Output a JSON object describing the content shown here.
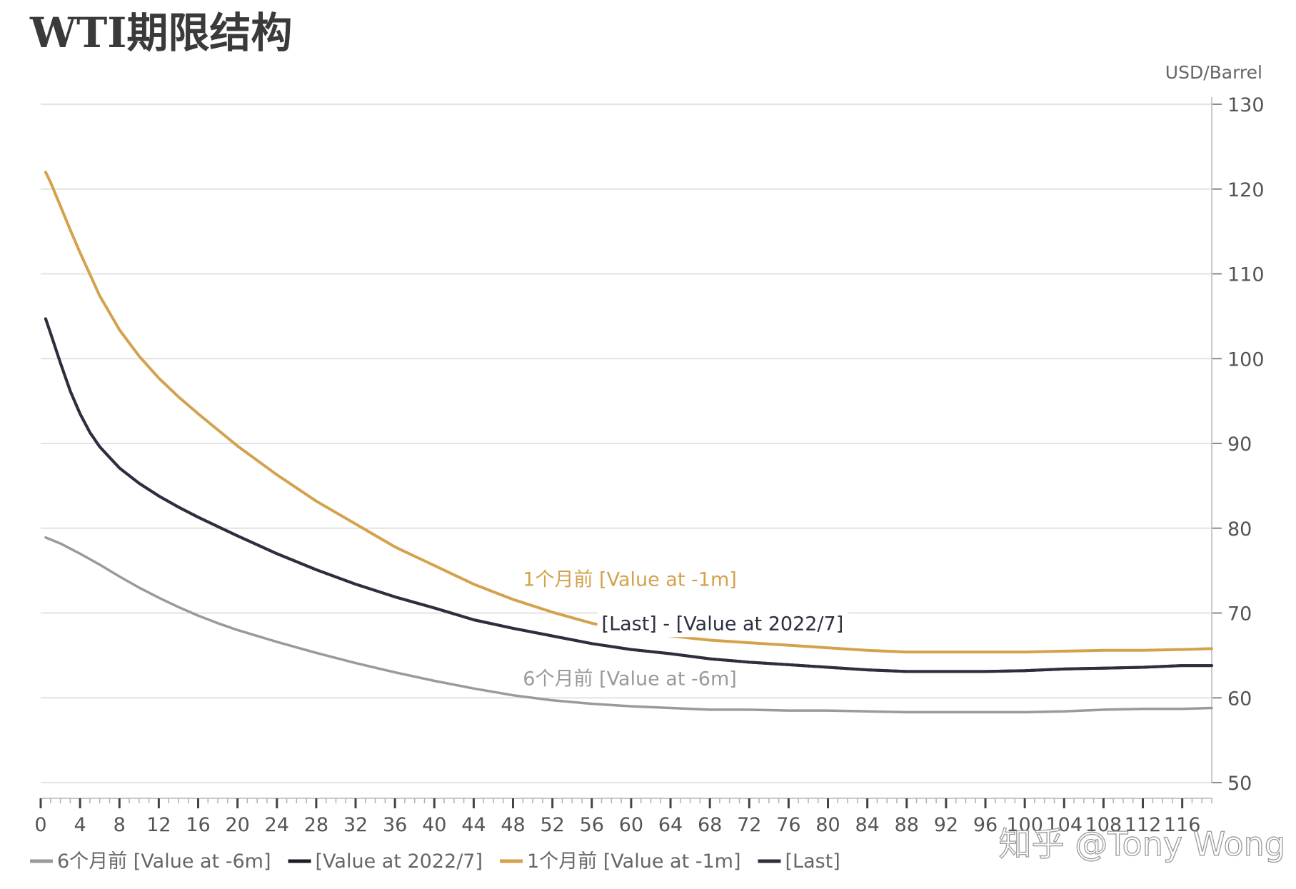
{
  "page": {
    "title": "WTI期限结构"
  },
  "watermark": "知乎 @Tony Wong",
  "chart_data": {
    "type": "line",
    "title": "WTI期限结构",
    "ylabel": "USD/Barrel",
    "xlabel": "",
    "xlim": [
      0,
      119
    ],
    "ylim": [
      50,
      130
    ],
    "grid": true,
    "y_axis_side": "right",
    "legend_position": "bottom",
    "x_ticks": [
      0,
      4,
      8,
      12,
      16,
      20,
      24,
      28,
      32,
      36,
      40,
      44,
      48,
      52,
      56,
      60,
      64,
      68,
      72,
      76,
      80,
      84,
      88,
      92,
      96,
      100,
      104,
      108,
      112,
      116
    ],
    "y_ticks": [
      50,
      60,
      70,
      80,
      90,
      100,
      110,
      120,
      130
    ],
    "series": [
      {
        "key": "m6",
        "name": "6个月前 [Value at -6m]",
        "color": "#9a9a9a",
        "x": [
          0.5,
          2,
          4,
          6,
          8,
          10,
          12,
          14,
          16,
          18,
          20,
          24,
          28,
          32,
          36,
          40,
          44,
          48,
          52,
          56,
          60,
          64,
          68,
          72,
          76,
          80,
          84,
          88,
          92,
          96,
          100,
          104,
          108,
          112,
          116,
          119
        ],
        "y": [
          78.9,
          78.2,
          77.0,
          75.7,
          74.3,
          73.0,
          71.8,
          70.7,
          69.7,
          68.8,
          68.0,
          66.6,
          65.3,
          64.1,
          63.0,
          62.0,
          61.1,
          60.3,
          59.7,
          59.3,
          59.0,
          58.8,
          58.6,
          58.6,
          58.5,
          58.5,
          58.4,
          58.3,
          58.3,
          58.3,
          58.3,
          58.4,
          58.6,
          58.7,
          58.7,
          58.8
        ]
      },
      {
        "key": "jul",
        "name": "[Value at 2022/7]",
        "color": "#1c1c24",
        "x": [
          0.5,
          1,
          2,
          3,
          4,
          5,
          6,
          8,
          10,
          12,
          14,
          16,
          18,
          20,
          24,
          28,
          32,
          36,
          40,
          44,
          48,
          52,
          56,
          60,
          64,
          68,
          72,
          76,
          80,
          84,
          88,
          92,
          96,
          100,
          104,
          108,
          112,
          116,
          119
        ],
        "y": [
          104.7,
          103.0,
          99.5,
          96.2,
          93.5,
          91.3,
          89.6,
          87.1,
          85.3,
          83.8,
          82.5,
          81.3,
          80.2,
          79.1,
          77.0,
          75.1,
          73.4,
          71.9,
          70.6,
          69.2,
          68.2,
          67.3,
          66.4,
          65.7,
          65.2,
          64.6,
          64.2,
          63.9,
          63.6,
          63.3,
          63.1,
          63.1,
          63.1,
          63.2,
          63.4,
          63.5,
          63.6,
          63.8,
          63.8
        ]
      },
      {
        "key": "m1",
        "name": "1个月前 [Value at -1m]",
        "color": "#d4a24c",
        "x": [
          0.5,
          1,
          2,
          3,
          4,
          6,
          8,
          10,
          12,
          14,
          16,
          18,
          20,
          24,
          28,
          32,
          36,
          40,
          44,
          48,
          52,
          56,
          60,
          64,
          68,
          72,
          76,
          80,
          84,
          88,
          92,
          96,
          100,
          104,
          108,
          112,
          116,
          119
        ],
        "y": [
          122.0,
          120.8,
          118.0,
          115.2,
          112.5,
          107.4,
          103.4,
          100.3,
          97.7,
          95.5,
          93.5,
          91.6,
          89.7,
          86.3,
          83.2,
          80.5,
          77.8,
          75.6,
          73.4,
          71.6,
          70.1,
          68.8,
          67.9,
          67.3,
          66.8,
          66.5,
          66.2,
          65.9,
          65.6,
          65.4,
          65.4,
          65.4,
          65.4,
          65.5,
          65.6,
          65.6,
          65.7,
          65.8
        ]
      },
      {
        "key": "last",
        "name": "[Last]",
        "color": "#2c2f3e",
        "x": [
          0.5,
          1,
          2,
          3,
          4,
          5,
          6,
          8,
          10,
          12,
          14,
          16,
          18,
          20,
          24,
          28,
          32,
          36,
          40,
          44,
          48,
          52,
          56,
          60,
          64,
          68,
          72,
          76,
          80,
          84,
          88,
          92,
          96,
          100,
          104,
          108,
          112,
          116,
          119
        ],
        "y": [
          104.7,
          103.0,
          99.5,
          96.2,
          93.5,
          91.3,
          89.6,
          87.1,
          85.3,
          83.8,
          82.5,
          81.3,
          80.2,
          79.1,
          77.0,
          75.1,
          73.4,
          71.9,
          70.6,
          69.2,
          68.2,
          67.3,
          66.4,
          65.7,
          65.2,
          64.6,
          64.2,
          63.9,
          63.6,
          63.3,
          63.1,
          63.1,
          63.1,
          63.2,
          63.4,
          63.5,
          63.6,
          63.8,
          63.8
        ]
      }
    ],
    "annotations": [
      {
        "key": "m1",
        "text": "1个月前 [Value at -1m]",
        "x": 49,
        "y": 73.2,
        "color": "#d4a24c"
      },
      {
        "key": "last",
        "text": "[Last] - [Value at 2022/7]",
        "x": 57,
        "y": 68.0,
        "color": "#2c2f3e"
      },
      {
        "key": "m6",
        "text": "6个月前 [Value at -6m]",
        "x": 49,
        "y": 61.5,
        "color": "#9a9a9a"
      }
    ]
  }
}
